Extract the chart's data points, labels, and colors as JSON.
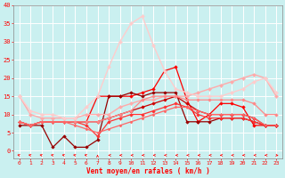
{
  "xlabel": "Vent moyen/en rafales ( km/h )",
  "bg_color": "#caf0f0",
  "grid_color": "#ffffff",
  "x": [
    0,
    1,
    2,
    3,
    4,
    5,
    6,
    7,
    8,
    9,
    10,
    11,
    12,
    13,
    14,
    15,
    16,
    17,
    18,
    19,
    20,
    21,
    22,
    23
  ],
  "ylim": [
    -2,
    40
  ],
  "xlim": [
    -0.5,
    23.5
  ],
  "yticks": [
    0,
    5,
    10,
    15,
    20,
    25,
    30,
    35,
    40
  ],
  "lines": [
    {
      "y": [
        8,
        7,
        8,
        8,
        8,
        8,
        8,
        15,
        15,
        15,
        15,
        16,
        17,
        22,
        23,
        14,
        8,
        10,
        13,
        13,
        12,
        7,
        7,
        7
      ],
      "color": "#ff0000",
      "lw": 0.9,
      "marker": "D",
      "ms": 1.8
    },
    {
      "y": [
        7,
        7,
        7,
        1,
        4,
        1,
        1,
        3,
        15,
        15,
        16,
        15,
        16,
        16,
        16,
        8,
        8,
        8,
        9,
        9,
        9,
        8,
        7,
        7
      ],
      "color": "#990000",
      "lw": 0.9,
      "marker": "D",
      "ms": 1.8
    },
    {
      "y": [
        8,
        7,
        8,
        8,
        8,
        8,
        7,
        4,
        8,
        9,
        10,
        10,
        11,
        12,
        13,
        12,
        10,
        9,
        9,
        9,
        9,
        8,
        7,
        7
      ],
      "color": "#ff3333",
      "lw": 0.9,
      "marker": "D",
      "ms": 1.8
    },
    {
      "y": [
        8,
        7,
        8,
        8,
        8,
        8,
        8,
        8,
        9,
        10,
        11,
        12,
        13,
        14,
        15,
        13,
        11,
        10,
        10,
        10,
        10,
        9,
        7,
        7
      ],
      "color": "#cc0000",
      "lw": 0.9,
      "marker": "D",
      "ms": 1.8
    },
    {
      "y": [
        15,
        10,
        9,
        9,
        9,
        9,
        10,
        10,
        10,
        12,
        13,
        14,
        14,
        15,
        15,
        15,
        16,
        17,
        18,
        19,
        20,
        21,
        20,
        15
      ],
      "color": "#ffaaaa",
      "lw": 1.0,
      "marker": "D",
      "ms": 2.0
    },
    {
      "y": [
        8,
        7,
        8,
        8,
        8,
        8,
        8,
        8,
        9,
        10,
        11,
        14,
        15,
        15,
        15,
        14,
        14,
        14,
        14,
        14,
        14,
        13,
        10,
        10
      ],
      "color": "#ff8888",
      "lw": 0.9,
      "marker": "D",
      "ms": 1.8
    },
    {
      "y": [
        8,
        7,
        8,
        8,
        8,
        7,
        6,
        5,
        6,
        7,
        8,
        9,
        10,
        11,
        12,
        12,
        11,
        10,
        10,
        10,
        10,
        9,
        7,
        7
      ],
      "color": "#ff6666",
      "lw": 0.9,
      "marker": "D",
      "ms": 1.5
    },
    {
      "y": [
        15,
        11,
        10,
        10,
        9,
        9,
        12,
        15,
        23,
        30,
        35,
        37,
        29,
        22,
        17,
        16,
        15,
        15,
        15,
        16,
        17,
        19,
        20,
        16
      ],
      "color": "#ffcccc",
      "lw": 1.0,
      "marker": "D",
      "ms": 2.0
    }
  ],
  "wind_arrows": {
    "x": [
      0,
      1,
      2,
      3,
      4,
      5,
      6,
      7,
      8,
      9,
      10,
      11,
      12,
      13,
      14,
      15,
      16,
      17,
      18,
      19,
      20,
      21,
      22,
      23
    ],
    "angles": [
      225,
      225,
      225,
      225,
      225,
      225,
      225,
      180,
      270,
      270,
      270,
      270,
      270,
      270,
      270,
      270,
      270,
      270,
      270,
      270,
      270,
      270,
      270,
      45
    ],
    "color": "#ff0000"
  }
}
